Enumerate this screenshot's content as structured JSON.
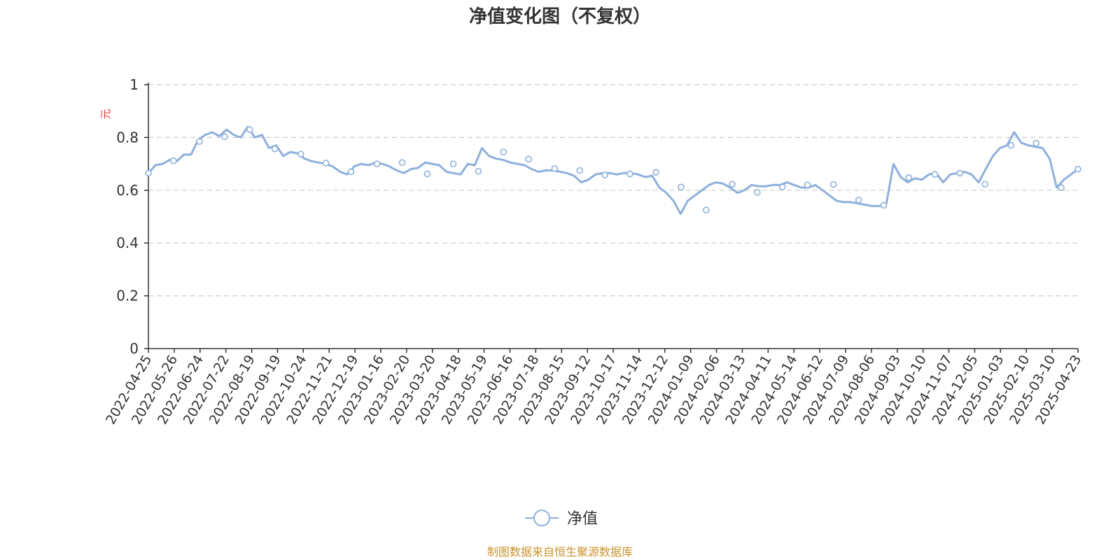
{
  "chart_data": {
    "type": "line",
    "title": "净值变化图（不复权）",
    "ylabel": "元",
    "ylim": [
      0,
      1
    ],
    "yticks": [
      "0",
      "0.2",
      "0.4",
      "0.6",
      "0.8",
      "1"
    ],
    "grid": true,
    "x_tick_labels": [
      "2022-04-25",
      "2022-05-26",
      "2022-06-24",
      "2022-07-22",
      "2022-08-19",
      "2022-09-19",
      "2022-10-24",
      "2022-11-21",
      "2022-12-19",
      "2023-01-16",
      "2023-02-20",
      "2023-03-20",
      "2023-04-18",
      "2023-05-19",
      "2023-06-16",
      "2023-07-18",
      "2023-08-15",
      "2023-09-12",
      "2023-10-17",
      "2023-11-14",
      "2023-12-12",
      "2024-01-09",
      "2024-02-06",
      "2024-03-13",
      "2024-04-11",
      "2024-05-14",
      "2024-06-12",
      "2024-07-09",
      "2024-08-06",
      "2024-09-03",
      "2024-10-10",
      "2024-11-07",
      "2024-12-05",
      "2025-01-03",
      "2025-02-10",
      "2025-03-10",
      "2025-04-23"
    ],
    "legend": {
      "position": "bottom-center",
      "entries": [
        "净值"
      ]
    },
    "series": [
      {
        "name": "净值",
        "color": "#8eb0dc",
        "values": [
          0.665,
          0.695,
          0.7,
          0.715,
          0.71,
          0.735,
          0.735,
          0.79,
          0.81,
          0.82,
          0.805,
          0.83,
          0.81,
          0.8,
          0.84,
          0.8,
          0.81,
          0.76,
          0.77,
          0.73,
          0.745,
          0.74,
          0.72,
          0.71,
          0.705,
          0.7,
          0.69,
          0.67,
          0.66,
          0.69,
          0.7,
          0.695,
          0.705,
          0.7,
          0.69,
          0.675,
          0.665,
          0.68,
          0.685,
          0.705,
          0.7,
          0.695,
          0.67,
          0.665,
          0.66,
          0.7,
          0.695,
          0.76,
          0.73,
          0.72,
          0.715,
          0.705,
          0.7,
          0.695,
          0.68,
          0.67,
          0.675,
          0.675,
          0.67,
          0.665,
          0.655,
          0.63,
          0.64,
          0.66,
          0.665,
          0.665,
          0.66,
          0.665,
          0.665,
          0.66,
          0.65,
          0.655,
          0.61,
          0.59,
          0.56,
          0.51,
          0.56,
          0.58,
          0.6,
          0.62,
          0.63,
          0.625,
          0.61,
          0.59,
          0.6,
          0.62,
          0.615,
          0.615,
          0.62,
          0.62,
          0.63,
          0.62,
          0.61,
          0.61,
          0.62,
          0.6,
          0.58,
          0.56,
          0.555,
          0.555,
          0.55,
          0.545,
          0.54,
          0.54,
          0.55,
          0.7,
          0.65,
          0.63,
          0.645,
          0.64,
          0.66,
          0.665,
          0.63,
          0.66,
          0.665,
          0.67,
          0.66,
          0.63,
          0.68,
          0.73,
          0.76,
          0.77,
          0.82,
          0.78,
          0.77,
          0.765,
          0.76,
          0.72,
          0.61,
          0.64,
          0.66,
          0.68
        ]
      }
    ],
    "markers": [
      {
        "x": 0.0,
        "y": 0.665
      },
      {
        "x": 0.027,
        "y": 0.712
      },
      {
        "x": 0.055,
        "y": 0.785
      },
      {
        "x": 0.082,
        "y": 0.803
      },
      {
        "x": 0.109,
        "y": 0.83
      },
      {
        "x": 0.136,
        "y": 0.757
      },
      {
        "x": 0.164,
        "y": 0.737
      },
      {
        "x": 0.191,
        "y": 0.703
      },
      {
        "x": 0.218,
        "y": 0.67
      },
      {
        "x": 0.246,
        "y": 0.7
      },
      {
        "x": 0.273,
        "y": 0.705
      },
      {
        "x": 0.3,
        "y": 0.662
      },
      {
        "x": 0.328,
        "y": 0.7
      },
      {
        "x": 0.355,
        "y": 0.672
      },
      {
        "x": 0.382,
        "y": 0.745
      },
      {
        "x": 0.409,
        "y": 0.718
      },
      {
        "x": 0.437,
        "y": 0.682
      },
      {
        "x": 0.464,
        "y": 0.675
      },
      {
        "x": 0.491,
        "y": 0.658
      },
      {
        "x": 0.518,
        "y": 0.662
      },
      {
        "x": 0.546,
        "y": 0.668
      },
      {
        "x": 0.573,
        "y": 0.612
      },
      {
        "x": 0.6,
        "y": 0.525
      },
      {
        "x": 0.628,
        "y": 0.623
      },
      {
        "x": 0.655,
        "y": 0.592
      },
      {
        "x": 0.682,
        "y": 0.612
      },
      {
        "x": 0.709,
        "y": 0.62
      },
      {
        "x": 0.737,
        "y": 0.622
      },
      {
        "x": 0.764,
        "y": 0.563
      },
      {
        "x": 0.791,
        "y": 0.543
      },
      {
        "x": 0.818,
        "y": 0.648
      },
      {
        "x": 0.846,
        "y": 0.66
      },
      {
        "x": 0.873,
        "y": 0.665
      },
      {
        "x": 0.9,
        "y": 0.623
      },
      {
        "x": 0.928,
        "y": 0.77
      },
      {
        "x": 0.955,
        "y": 0.778
      },
      {
        "x": 0.982,
        "y": 0.61
      },
      {
        "x": 1.0,
        "y": 0.68
      }
    ]
  },
  "footer": {
    "source": "制图数据来自恒生聚源数据库"
  }
}
